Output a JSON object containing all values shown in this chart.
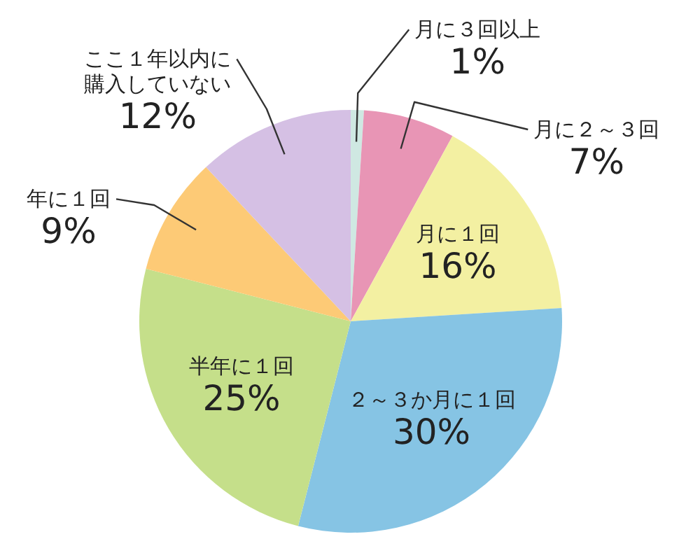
{
  "chart_data": {
    "type": "pie",
    "categories": [
      "月に３回以上",
      "月に２～３回",
      "月に１回",
      "２～３か月に１回",
      "半年に１回",
      "年に１回",
      "ここ１年以内に購入していない"
    ],
    "values": [
      1,
      7,
      16,
      30,
      25,
      9,
      12
    ],
    "colors": [
      "#cfe8e2",
      "#e895b5",
      "#f3f0a2",
      "#86c4e4",
      "#c5df8a",
      "#fdca76",
      "#d5c0e4"
    ],
    "value_labels": [
      "1%",
      "7%",
      "16%",
      "30%",
      "25%",
      "9%",
      "12%"
    ]
  }
}
